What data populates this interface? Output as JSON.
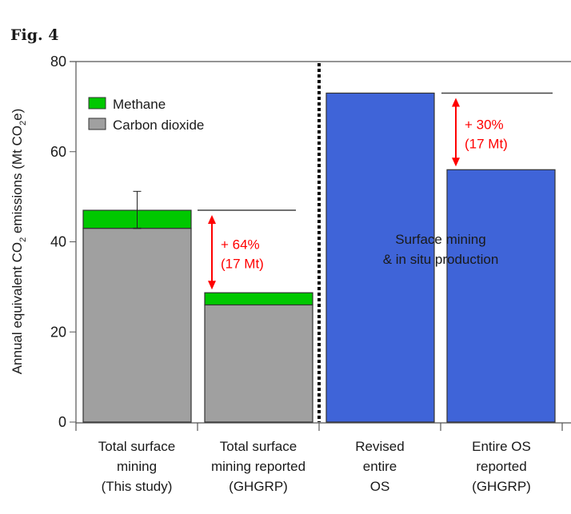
{
  "figure_label": "Fig. 4",
  "chart_data": {
    "type": "bar",
    "stacked": true,
    "title": "",
    "xlabel": "",
    "ylabel": "Annual equivalent CO2 emissions (Mt CO2e)",
    "ylabel_parts": {
      "prefix": "Annual equivalent CO",
      "sub1": "2",
      "mid": " emissions (Mt CO",
      "sub2": "2",
      "suffix": "e)"
    },
    "ylim": [
      0,
      80
    ],
    "yticks": [
      0,
      20,
      40,
      60,
      80
    ],
    "ytick_labels": [
      "0",
      "20",
      "40",
      "60",
      "80"
    ],
    "categories": [
      [
        "Total surface",
        "mining",
        "(This study)"
      ],
      [
        "Total surface",
        "mining reported",
        "(GHGRP)"
      ],
      [
        "Revised",
        "entire",
        "OS"
      ],
      [
        "Entire OS",
        "reported",
        "(GHGRP)"
      ]
    ],
    "series": [
      {
        "name": "Carbon dioxide",
        "color": "#a0a0a0",
        "values": [
          43,
          26,
          null,
          null
        ]
      },
      {
        "name": "Methane",
        "color": "#00c800",
        "values": [
          4,
          2.7,
          null,
          null
        ]
      },
      {
        "name": "Surface mining & in situ production",
        "color": "#3f64d8",
        "values": [
          null,
          null,
          73,
          56
        ]
      }
    ],
    "error_bar": {
      "category_index": 0,
      "low": 43,
      "high": 51.2
    },
    "legend": {
      "position": "top-left",
      "entries": [
        {
          "label": "Methane",
          "color": "#00c800"
        },
        {
          "label": "Carbon dioxide",
          "color": "#a0a0a0"
        }
      ]
    },
    "bar_text": [
      "Surface mining",
      "& in situ production"
    ],
    "separator_after_category": 1,
    "annotations": [
      {
        "from_category": 1,
        "reference_value": 47,
        "target_value": 28.7,
        "line1": "+ 64%",
        "line2": "(17 Mt)",
        "color": "#ff0000"
      },
      {
        "from_category": 3,
        "reference_value": 73,
        "target_value": 56,
        "line1": "+ 30%",
        "line2": "(17 Mt)",
        "color": "#ff0000"
      }
    ],
    "grid": false
  }
}
